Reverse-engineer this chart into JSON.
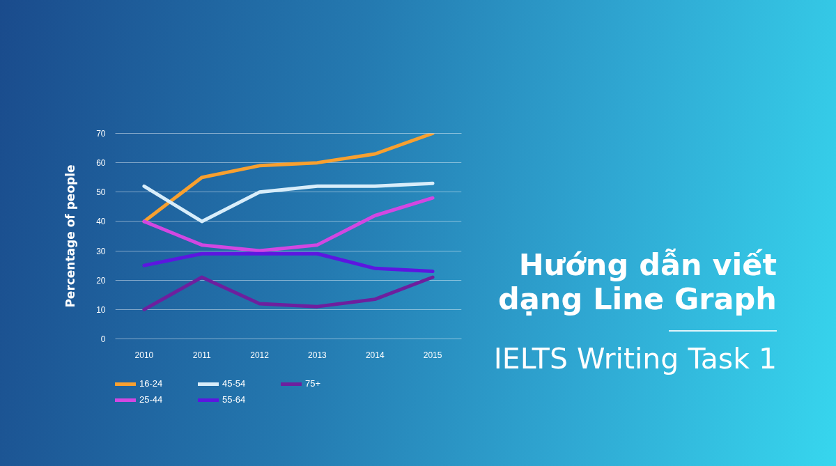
{
  "chart_data": {
    "type": "line",
    "title": "Hướng dẫn viết dạng Line Graph",
    "subtitle": "IELTS Writing Task 1",
    "ylabel": "Percentage of people",
    "categories": [
      "2010",
      "2011",
      "2012",
      "2013",
      "2014",
      "2015"
    ],
    "series": [
      {
        "name": "16-24",
        "color": "#f9a02f",
        "values": [
          40,
          55,
          59,
          60,
          63,
          70
        ]
      },
      {
        "name": "25-44",
        "color": "#d247e2",
        "values": [
          40,
          32,
          30,
          32,
          42,
          48
        ]
      },
      {
        "name": "45-54",
        "color": "#d8edfa",
        "values": [
          52,
          40,
          50,
          52,
          52,
          53
        ]
      },
      {
        "name": "55-64",
        "color": "#5c16e0",
        "values": [
          25,
          29,
          29,
          29,
          24,
          23
        ]
      },
      {
        "name": "75+",
        "color": "#6e1f9e",
        "values": [
          10,
          21,
          12,
          11,
          13.5,
          21
        ]
      }
    ],
    "ylim": [
      0,
      70
    ],
    "yticks": [
      0,
      10,
      20,
      30,
      40,
      50,
      60,
      70
    ],
    "grid": "y",
    "legend": "bottom",
    "line_style": "solid"
  }
}
